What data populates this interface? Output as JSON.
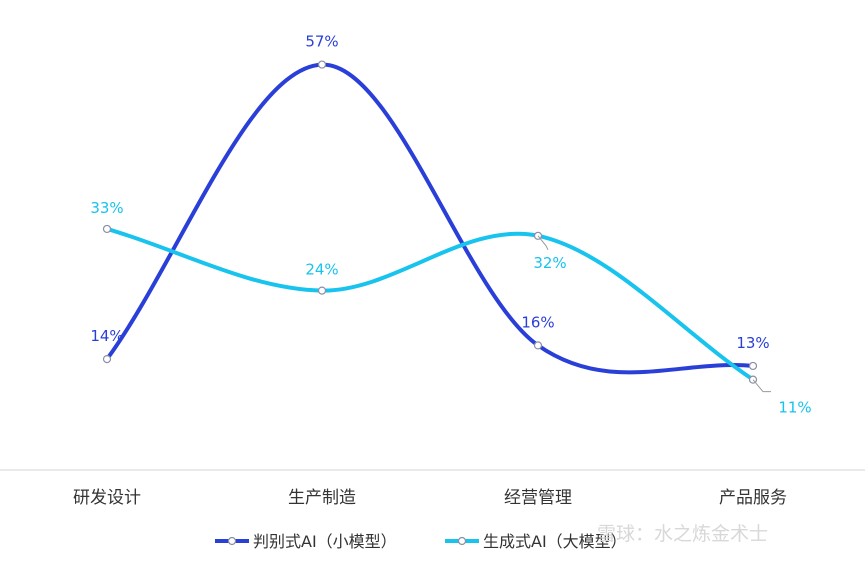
{
  "chart_data": {
    "type": "line",
    "categories": [
      "研发设计",
      "生产制造",
      "经营管理",
      "产品服务"
    ],
    "series": [
      {
        "name": "判别式AI（小模型）",
        "values": [
          14,
          57,
          16,
          13
        ],
        "labels": [
          "14%",
          "57%",
          "16%",
          "13%"
        ],
        "color": "#2a3fd8"
      },
      {
        "name": "生成式AI（大模型）",
        "values": [
          33,
          24,
          32,
          11
        ],
        "labels": [
          "33%",
          "24%",
          "32%",
          "11%"
        ],
        "color": "#18c3ee"
      }
    ],
    "ylim": [
      0,
      60
    ],
    "grid": false,
    "legend_position": "bottom"
  },
  "watermark": "雪球：水之炼金术士"
}
